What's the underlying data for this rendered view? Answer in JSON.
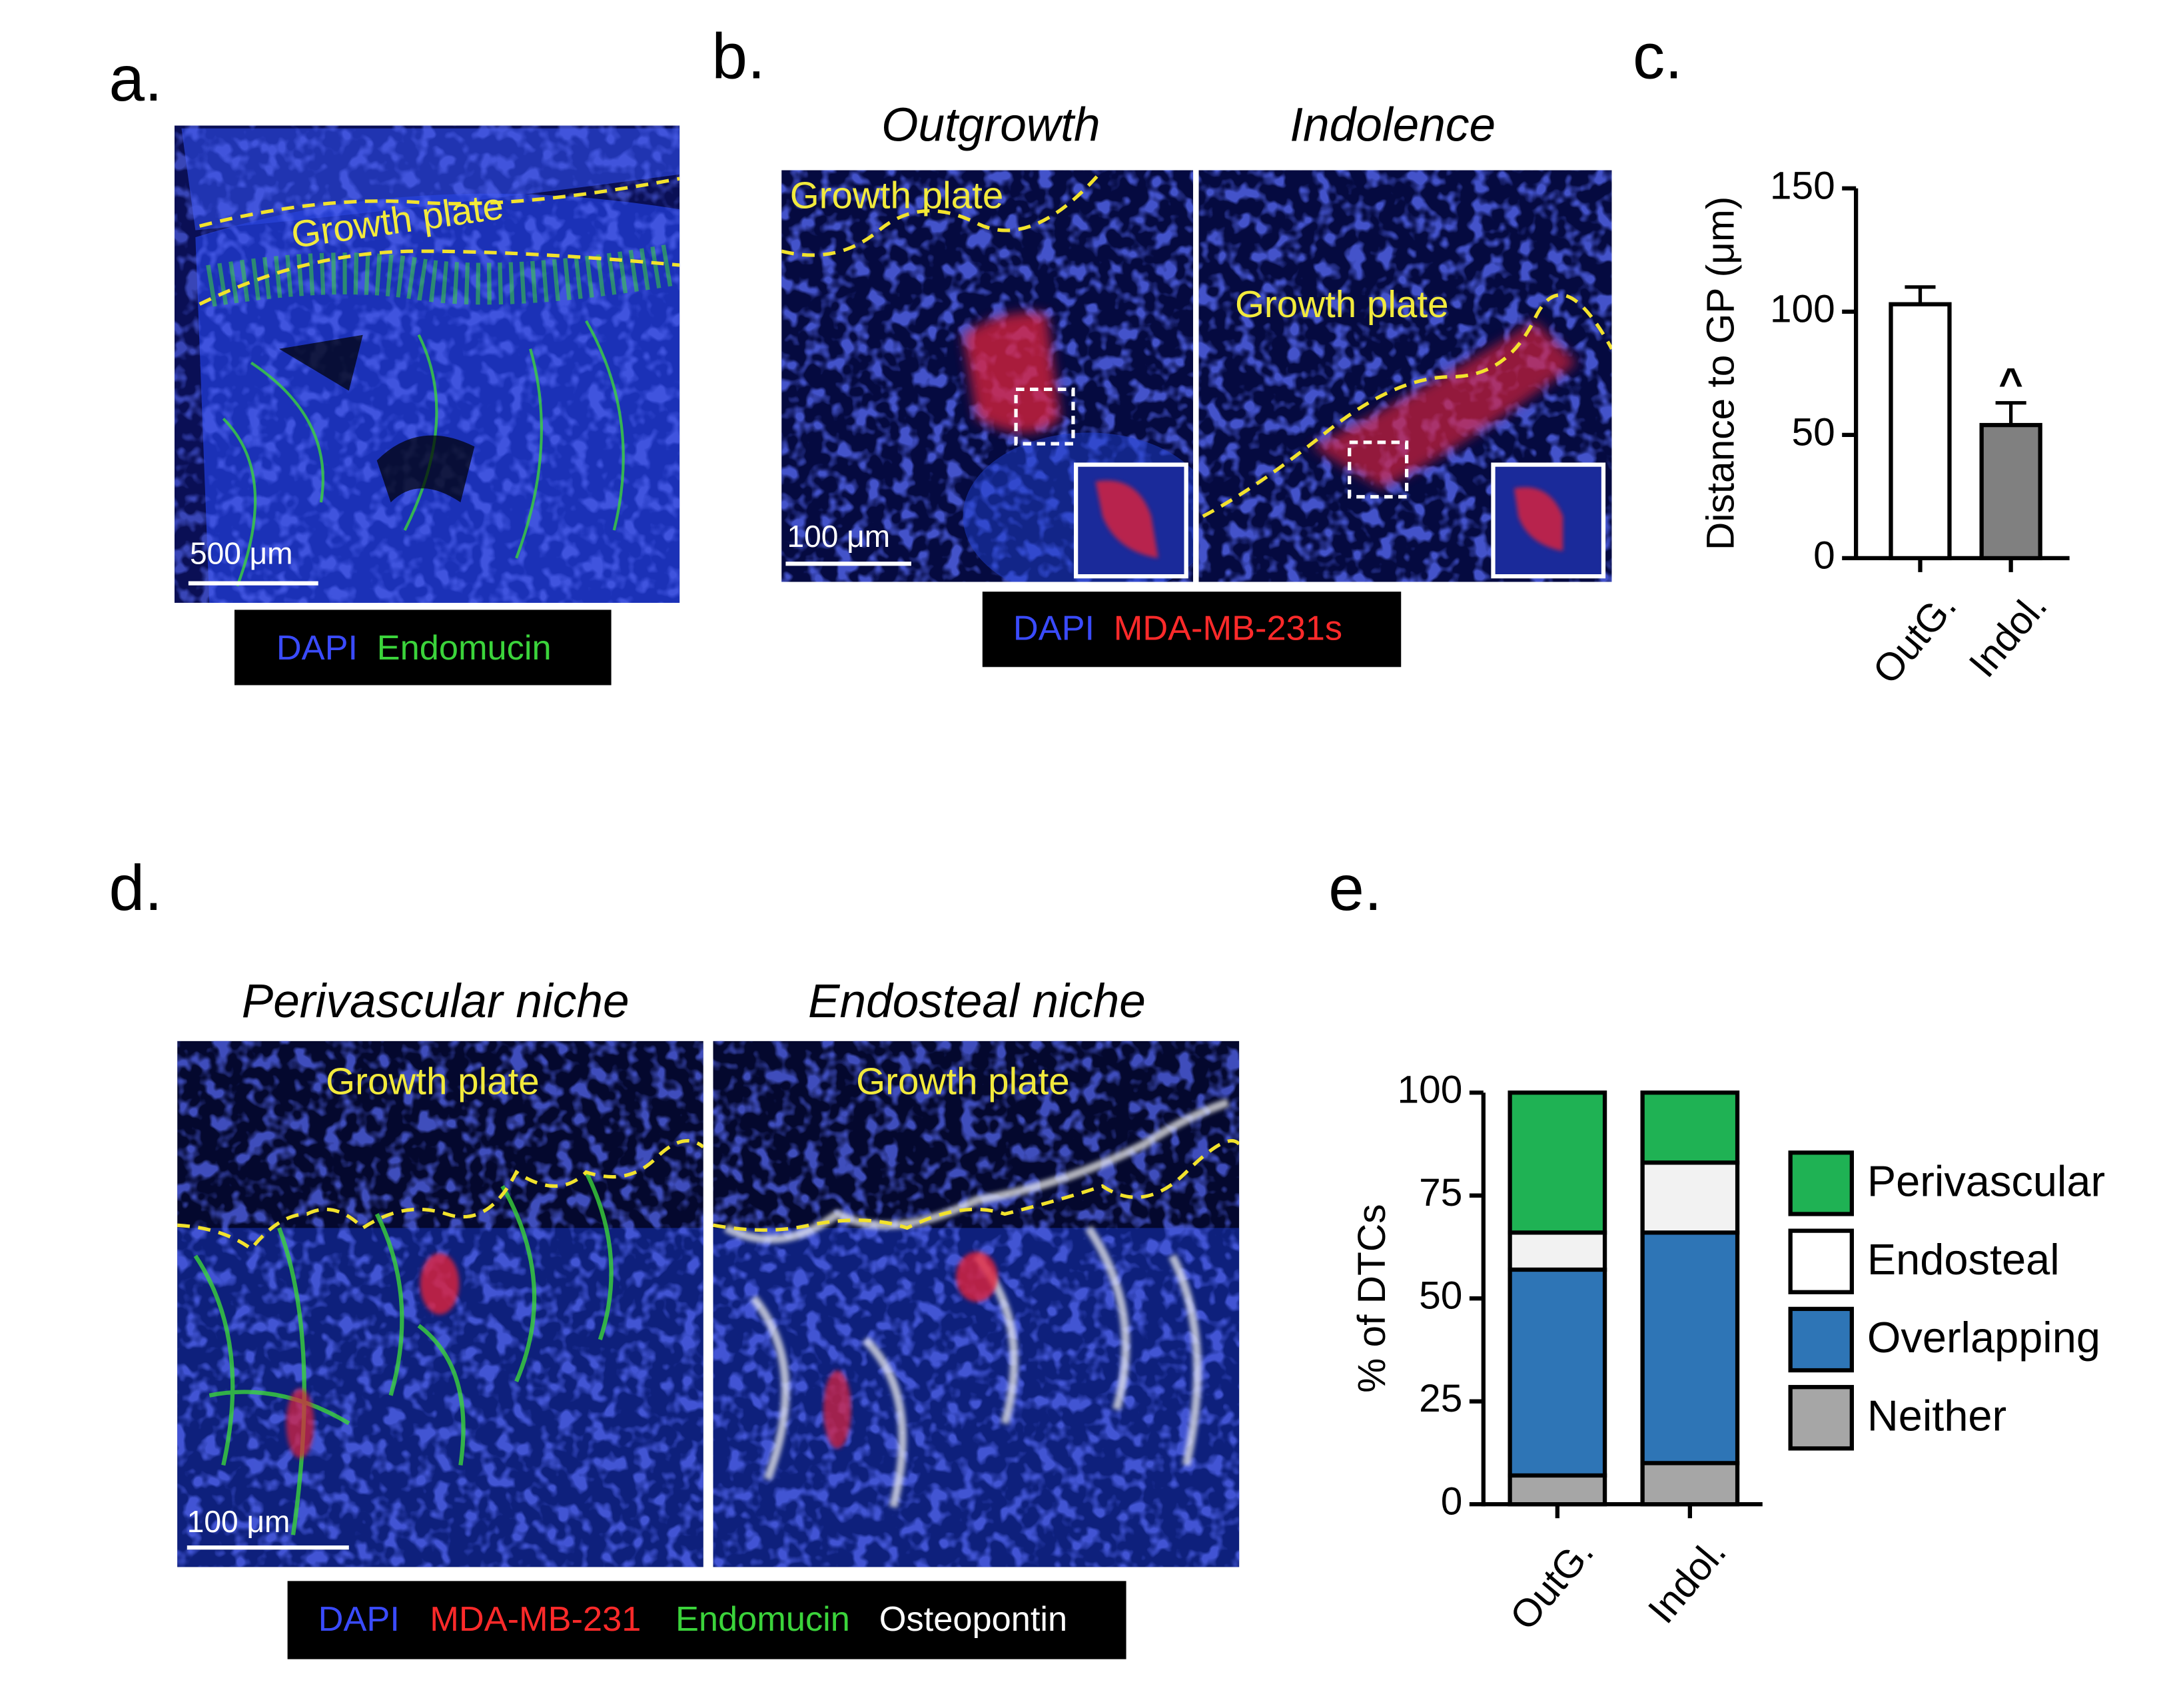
{
  "panels": {
    "a": {
      "label": "a.",
      "growth_plate": "Growth  plate",
      "scale_bar": "500 μm",
      "stains": [
        "DAPI",
        "Endomucin"
      ]
    },
    "b": {
      "label": "b.",
      "titles": [
        "Outgrowth",
        "Indolence"
      ],
      "growth_plate": [
        "Growth plate",
        "Growth plate"
      ],
      "scale_bar": "100 μm",
      "stains": [
        "DAPI",
        "MDA-MB-231s"
      ]
    },
    "c": {
      "label": "c."
    },
    "d": {
      "label": "d.",
      "titles": [
        "Perivascular niche",
        "Endosteal niche"
      ],
      "growth_plate": [
        "Growth plate",
        "Growth plate"
      ],
      "scale_bar": "100 μm",
      "stains": [
        "DAPI",
        "MDA-MB-231",
        "Endomucin",
        "Osteopontin"
      ]
    },
    "e": {
      "label": "e."
    }
  },
  "chart_data": [
    {
      "type": "bar",
      "categories": [
        "OutG.",
        "Indol."
      ],
      "values": [
        103,
        54
      ],
      "errors": [
        7,
        9
      ],
      "colors": [
        "#ffffff",
        "#808080"
      ],
      "ylabel": "Distance to GP (μm)",
      "annotation": "^",
      "ylim": [
        0,
        150
      ],
      "yticks": [
        0,
        50,
        100,
        150
      ]
    },
    {
      "type": "stacked_bar",
      "categories": [
        "OutG.",
        "Indol."
      ],
      "ylabel": "% of DTCs",
      "ylim": [
        0,
        100
      ],
      "yticks": [
        0,
        25,
        50,
        75,
        100
      ],
      "legend": "right",
      "series": [
        {
          "name": "Neither",
          "color": "#a6a6a6",
          "values": [
            7,
            10
          ]
        },
        {
          "name": "Overlapping",
          "color": "#2e75b6",
          "values": [
            50,
            56
          ]
        },
        {
          "name": "Endosteal",
          "color": "#f2f2f2",
          "values": [
            9,
            17
          ]
        },
        {
          "name": "Perivascular",
          "color": "#1fb254",
          "values": [
            34,
            17
          ]
        }
      ]
    }
  ]
}
